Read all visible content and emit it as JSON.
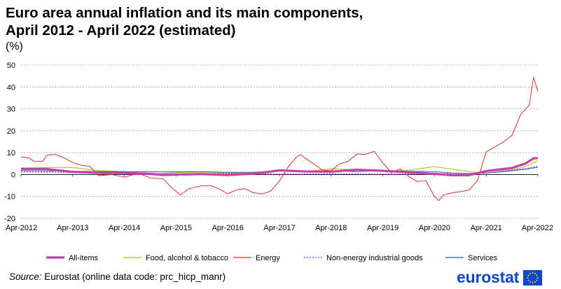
{
  "header": {
    "title_line1": "Euro area annual inflation and its main components,",
    "title_line2": "April 2012 - April 2022 (estimated)",
    "unit": "(%)"
  },
  "footer": {
    "source_label": "Source:",
    "source_text": " Eurostat (online data code: prc_hicp_manr)",
    "logo_text": "eurostat"
  },
  "chart_data": {
    "type": "line",
    "title": "Euro area annual inflation and its main components, April 2012 - April 2022 (estimated)",
    "ylabel": "(%)",
    "xlabel": "",
    "ylim": [
      -20,
      50
    ],
    "yticks": [
      -20,
      -10,
      0,
      10,
      20,
      30,
      40,
      50
    ],
    "grid": "horizontal dashed",
    "legend_position": "bottom",
    "x_tick_labels": [
      "Apr-2012",
      "Apr-2013",
      "Apr-2014",
      "Apr-2015",
      "Apr-2016",
      "Apr-2017",
      "Apr-2018",
      "Apr-2019",
      "Apr-2020",
      "Apr-2021",
      "Apr-2022"
    ],
    "x_anchor_months": [
      0,
      12,
      24,
      36,
      48,
      60,
      72,
      84,
      96,
      108,
      120
    ],
    "series": [
      {
        "name": "All-items",
        "color": "#c93fa8",
        "knots": [
          [
            0,
            2.6
          ],
          [
            6,
            2.5
          ],
          [
            12,
            1.2
          ],
          [
            18,
            0.8
          ],
          [
            24,
            0.7
          ],
          [
            30,
            0.3
          ],
          [
            33,
            -0.2
          ],
          [
            36,
            0.0
          ],
          [
            42,
            0.2
          ],
          [
            48,
            -0.2
          ],
          [
            54,
            0.4
          ],
          [
            57,
            1.1
          ],
          [
            60,
            1.9
          ],
          [
            66,
            1.4
          ],
          [
            72,
            1.3
          ],
          [
            78,
            2.2
          ],
          [
            84,
            1.7
          ],
          [
            90,
            1.0
          ],
          [
            96,
            0.3
          ],
          [
            100,
            -0.3
          ],
          [
            104,
            -0.3
          ],
          [
            108,
            1.6
          ],
          [
            114,
            3.0
          ],
          [
            117,
            4.9
          ],
          [
            119,
            7.4
          ],
          [
            120,
            7.5
          ]
        ]
      },
      {
        "name": "Food, alcohol & tobacco",
        "color": "#b9b900",
        "knots": [
          [
            0,
            3.0
          ],
          [
            10,
            3.3
          ],
          [
            13,
            3.0
          ],
          [
            18,
            1.8
          ],
          [
            24,
            1.4
          ],
          [
            30,
            0.2
          ],
          [
            36,
            0.9
          ],
          [
            42,
            1.1
          ],
          [
            48,
            0.8
          ],
          [
            54,
            0.6
          ],
          [
            60,
            1.5
          ],
          [
            66,
            1.4
          ],
          [
            72,
            2.6
          ],
          [
            78,
            2.2
          ],
          [
            84,
            1.5
          ],
          [
            90,
            2.0
          ],
          [
            96,
            3.6
          ],
          [
            100,
            2.5
          ],
          [
            104,
            1.3
          ],
          [
            108,
            0.6
          ],
          [
            114,
            2.1
          ],
          [
            117,
            3.5
          ],
          [
            120,
            6.4
          ]
        ]
      },
      {
        "name": "Energy",
        "color": "#d73131",
        "knots": [
          [
            0,
            8.1
          ],
          [
            2,
            7.5
          ],
          [
            3,
            6.0
          ],
          [
            5,
            6.0
          ],
          [
            6,
            8.8
          ],
          [
            8,
            9.2
          ],
          [
            10,
            7.6
          ],
          [
            12,
            5.5
          ],
          [
            14,
            4.2
          ],
          [
            16,
            3.7
          ],
          [
            18,
            -0.5
          ],
          [
            21,
            0.0
          ],
          [
            24,
            -1.2
          ],
          [
            26,
            -0.1
          ],
          [
            28,
            0.0
          ],
          [
            30,
            -1.5
          ],
          [
            33,
            -2.0
          ],
          [
            35,
            -6.0
          ],
          [
            37,
            -9.3
          ],
          [
            39,
            -6.5
          ],
          [
            42,
            -5.1
          ],
          [
            44,
            -5.0
          ],
          [
            46,
            -6.6
          ],
          [
            48,
            -8.8
          ],
          [
            50,
            -7.0
          ],
          [
            52,
            -6.5
          ],
          [
            54,
            -8.3
          ],
          [
            56,
            -8.9
          ],
          [
            58,
            -7.5
          ],
          [
            60,
            -3.0
          ],
          [
            62,
            3.4
          ],
          [
            64,
            8.1
          ],
          [
            65,
            9.1
          ],
          [
            66,
            7.4
          ],
          [
            68,
            4.8
          ],
          [
            70,
            2.0
          ],
          [
            72,
            1.8
          ],
          [
            74,
            4.9
          ],
          [
            76,
            6.1
          ],
          [
            78,
            9.4
          ],
          [
            80,
            9.2
          ],
          [
            82,
            10.6
          ],
          [
            84,
            5.3
          ],
          [
            86,
            0.8
          ],
          [
            88,
            2.6
          ],
          [
            90,
            -0.9
          ],
          [
            92,
            -3.2
          ],
          [
            94,
            -2.8
          ],
          [
            96,
            -10.0
          ],
          [
            97,
            -11.9
          ],
          [
            98,
            -9.4
          ],
          [
            100,
            -8.4
          ],
          [
            102,
            -7.8
          ],
          [
            104,
            -7.1
          ],
          [
            106,
            -2.6
          ],
          [
            108,
            10.4
          ],
          [
            110,
            12.6
          ],
          [
            112,
            14.9
          ],
          [
            114,
            18.0
          ],
          [
            116,
            27.4
          ],
          [
            118,
            31.8
          ],
          [
            119,
            44.4
          ],
          [
            120,
            38.0
          ]
        ]
      },
      {
        "name": "Non-energy industrial goods",
        "color": "#8c2ec8",
        "dash": true,
        "knots": [
          [
            0,
            1.3
          ],
          [
            12,
            0.9
          ],
          [
            24,
            0.1
          ],
          [
            36,
            0.3
          ],
          [
            48,
            0.5
          ],
          [
            60,
            0.2
          ],
          [
            72,
            0.3
          ],
          [
            84,
            0.2
          ],
          [
            96,
            0.3
          ],
          [
            100,
            0.5
          ],
          [
            104,
            0.4
          ],
          [
            108,
            0.7
          ],
          [
            114,
            2.1
          ],
          [
            117,
            2.6
          ],
          [
            120,
            3.8
          ]
        ]
      },
      {
        "name": "Services",
        "color": "#1f5fae",
        "knots": [
          [
            0,
            1.8
          ],
          [
            12,
            1.5
          ],
          [
            24,
            1.3
          ],
          [
            36,
            1.2
          ],
          [
            42,
            1.3
          ],
          [
            48,
            1.0
          ],
          [
            54,
            1.0
          ],
          [
            60,
            1.8
          ],
          [
            66,
            1.3
          ],
          [
            72,
            1.7
          ],
          [
            78,
            1.3
          ],
          [
            84,
            1.9
          ],
          [
            90,
            1.5
          ],
          [
            96,
            1.3
          ],
          [
            100,
            0.7
          ],
          [
            104,
            0.5
          ],
          [
            108,
            0.7
          ],
          [
            114,
            1.7
          ],
          [
            117,
            2.4
          ],
          [
            120,
            3.3
          ]
        ]
      }
    ]
  }
}
